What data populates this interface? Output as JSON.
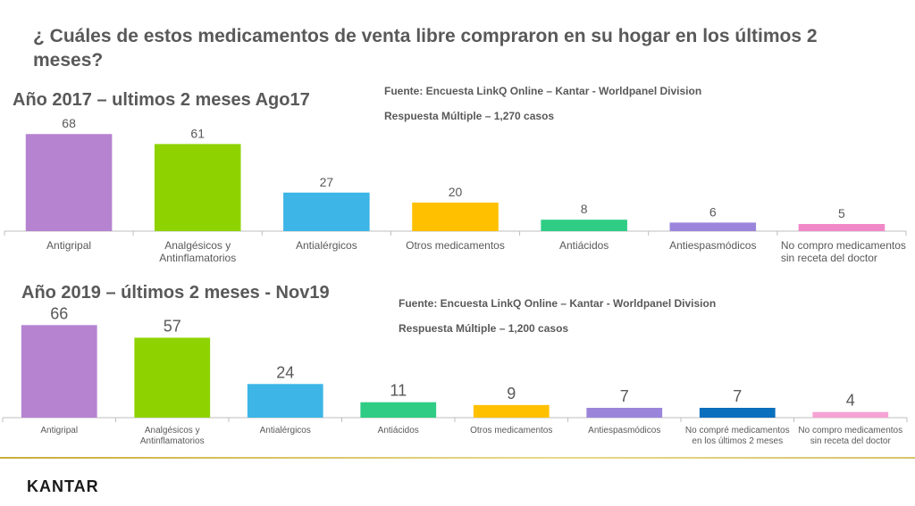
{
  "question": "¿ Cuáles de estos medicamentos de venta libre compraron en su hogar en los últimos 2 meses?",
  "chart_data": [
    {
      "type": "bar",
      "title": "Año 2017 – ultimos 2 meses Ago17",
      "source": "Fuente: Encuesta LinkQ Online – Kantar  - Worldpanel Division",
      "sample": "Respuesta Múltiple – 1,270 casos",
      "categories": [
        "Antigripal",
        "Analgésicos y Antinflamatorios",
        "Antialérgicos",
        "Otros medicamentos",
        "Antiácidos",
        "Antiespasmódicos",
        "No compro medicamentos sin receta del doctor"
      ],
      "values": [
        68,
        61,
        27,
        20,
        8,
        6,
        5
      ],
      "colors": [
        "#b683d1",
        "#8ed300",
        "#3db5e6",
        "#ffc000",
        "#2ecc85",
        "#9b85db",
        "#f088c8"
      ],
      "ylim": [
        0,
        70
      ]
    },
    {
      "type": "bar",
      "title": "Año 2019 – últimos 2 meses  - Nov19",
      "source": "Fuente: Encuesta LinkQ Online – Kantar  - Worldpanel Division",
      "sample": "Respuesta Múltiple – 1,200 casos",
      "categories": [
        "Antigripal",
        "Analgésicos y Antinflamatorios",
        "Antialérgicos",
        "Antiácidos",
        "Otros medicamentos",
        "Antiespasmódicos",
        "No compré medicamentos en los últimos 2 meses",
        "No compro medicamentos sin receta del doctor"
      ],
      "values": [
        66,
        57,
        24,
        11,
        9,
        7,
        7,
        4
      ],
      "colors": [
        "#b683d1",
        "#8ed300",
        "#3db5e6",
        "#2ecc85",
        "#ffc000",
        "#9b85db",
        "#0a6fbd",
        "#f6a2d4"
      ],
      "ylim": [
        0,
        70
      ]
    }
  ],
  "footer": {
    "logo": "KANTAR"
  }
}
